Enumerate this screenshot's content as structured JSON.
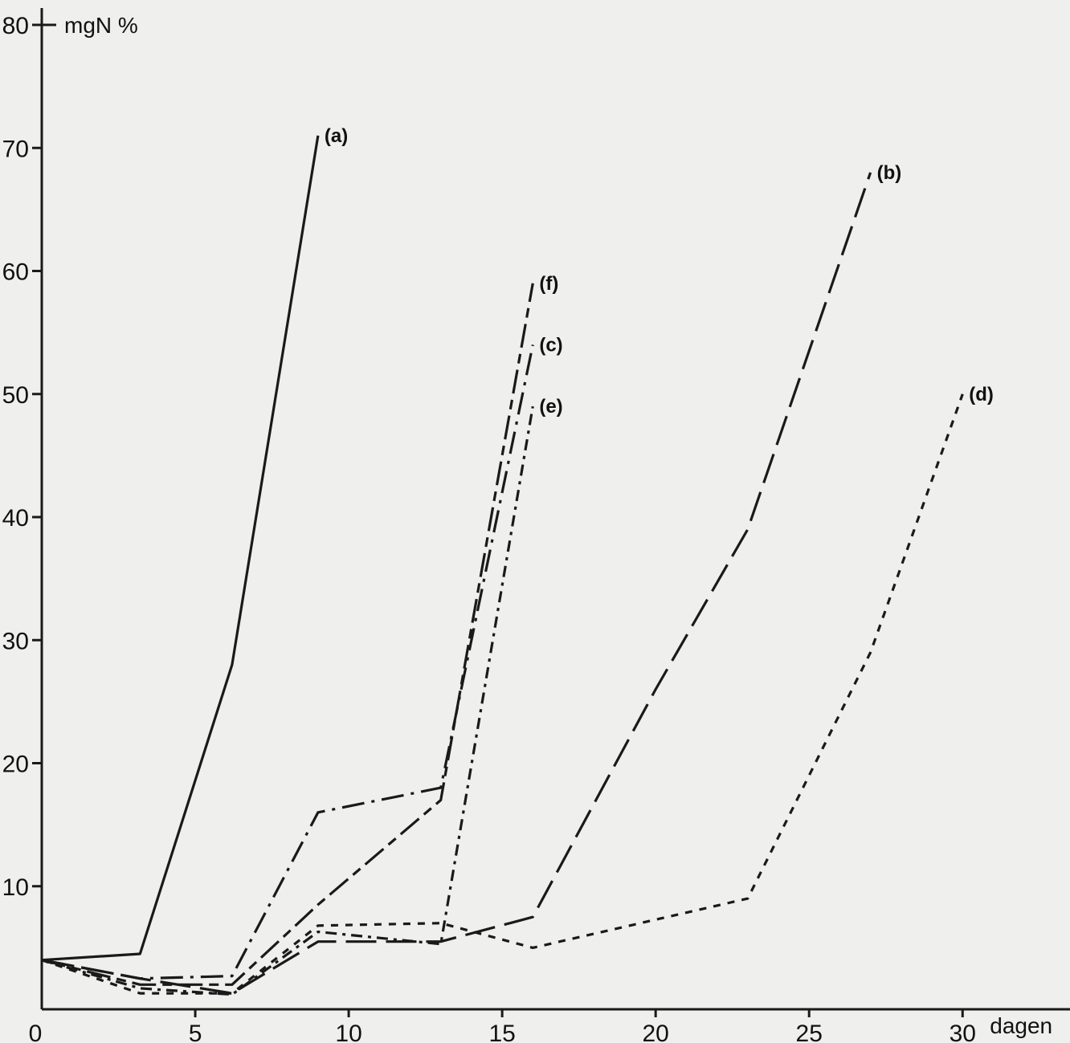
{
  "chart_data": {
    "type": "line",
    "title": "",
    "xlabel": "dagen",
    "ylabel": "mgN %",
    "xlim": [
      0,
      33.5
    ],
    "ylim": [
      0,
      80
    ],
    "x_ticks": [
      0,
      5,
      10,
      15,
      20,
      25,
      30
    ],
    "x_tick_labels": [
      "0",
      "5",
      "10",
      "15",
      "20",
      "25",
      "30"
    ],
    "y_ticks": [
      10,
      20,
      30,
      40,
      50,
      60,
      70,
      80
    ],
    "y_tick_labels": [
      "10",
      "20",
      "30",
      "40",
      "50",
      "60",
      "70",
      "80"
    ],
    "grid": false,
    "legend": "none",
    "series": [
      {
        "name": "(a)",
        "dash": "none",
        "x": [
          0,
          3.2,
          6.2,
          9
        ],
        "y": [
          4,
          4.5,
          28,
          71
        ]
      },
      {
        "name": "(b)",
        "dash": "long",
        "x": [
          0,
          3.2,
          6.2,
          9,
          13,
          16,
          20,
          23,
          27
        ],
        "y": [
          4,
          2.5,
          1.3,
          5.5,
          5.5,
          7.5,
          26,
          39,
          68
        ]
      },
      {
        "name": "(c)",
        "dash": "dashdot",
        "x": [
          0,
          3.2,
          6.2,
          9,
          13,
          16
        ],
        "y": [
          4,
          2.5,
          2.7,
          16,
          18,
          54
        ]
      },
      {
        "name": "(d)",
        "dash": "short",
        "x": [
          0,
          3.2,
          6.2,
          9,
          13,
          16,
          23,
          27,
          30
        ],
        "y": [
          4,
          1.3,
          1.3,
          6.8,
          7,
          5,
          9,
          29,
          50
        ]
      },
      {
        "name": "(e)",
        "dash": "dashdot2",
        "x": [
          0,
          3.2,
          6.2,
          9,
          13,
          16
        ],
        "y": [
          4,
          1.7,
          1.2,
          6.3,
          5.3,
          49
        ]
      },
      {
        "name": "(f)",
        "dash": "longshort",
        "x": [
          0,
          3.2,
          6.2,
          9,
          13,
          16
        ],
        "y": [
          4,
          2,
          2,
          8.5,
          17,
          59
        ]
      }
    ]
  }
}
